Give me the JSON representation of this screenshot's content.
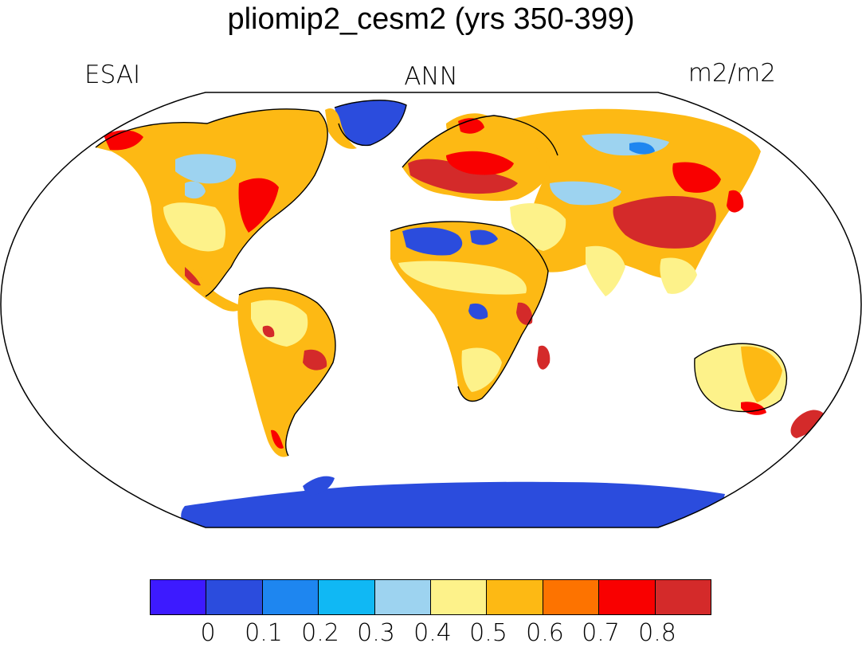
{
  "title": "pliomip2_cesm2 (yrs 350-399)",
  "left_label": "ESAI",
  "center_label": "ANN",
  "right_label": "m2/m2",
  "colorbar": {
    "colors": [
      "#3d1aff",
      "#2b4cdd",
      "#1e86f0",
      "#10b8f4",
      "#9dd3f0",
      "#fdf28a",
      "#fdb914",
      "#fd7300",
      "#f90000",
      "#d42a2a"
    ],
    "ticks": [
      "0",
      "0.1",
      "0.2",
      "0.3",
      "0.4",
      "0.5",
      "0.6",
      "0.7",
      "0.8"
    ]
  },
  "map": {
    "projection": "robinson",
    "ocean_color": "#ffffff"
  }
}
